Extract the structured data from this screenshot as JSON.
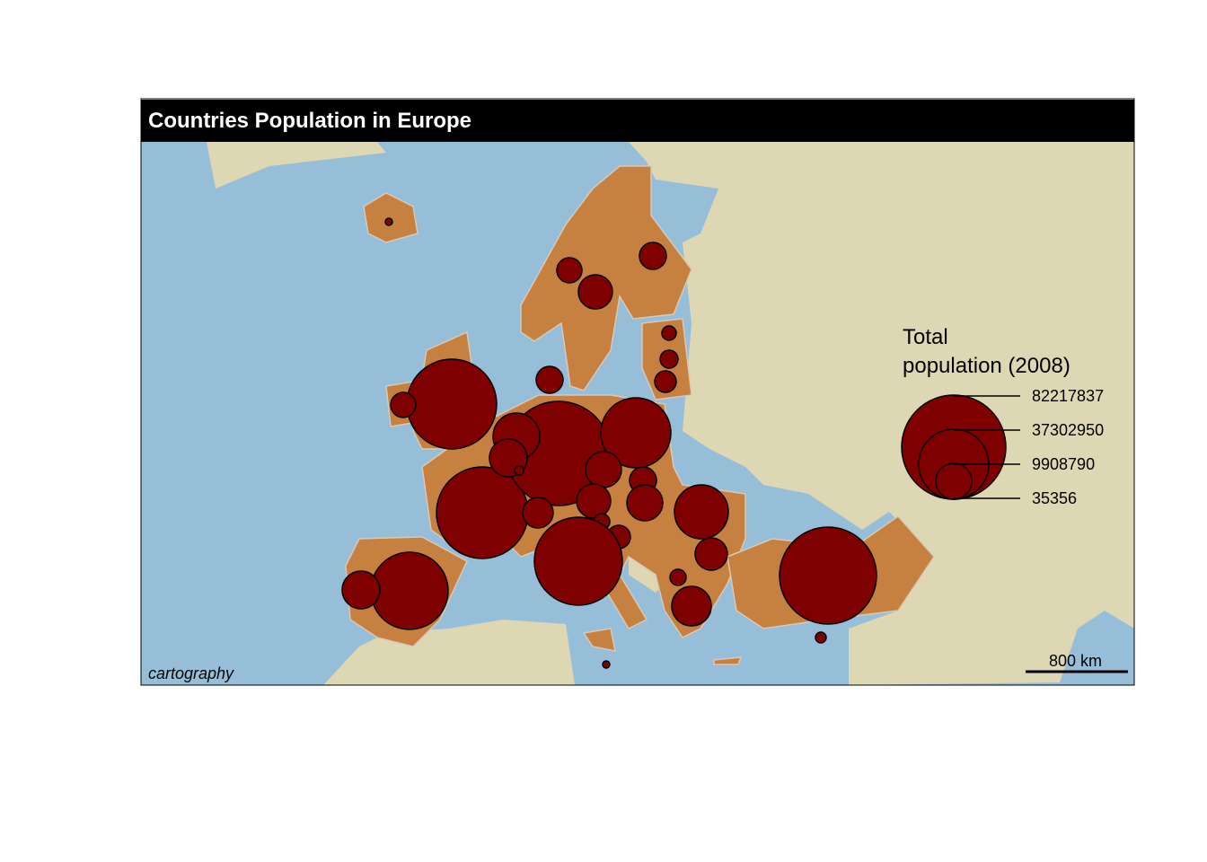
{
  "title": "Countries Population in Europe",
  "credit": "cartography",
  "scale_bar": {
    "label": "800 km"
  },
  "legend": {
    "title_line1": "Total",
    "title_line2": "population (2008)",
    "values": [
      "82217837",
      "37302950",
      "9908790",
      "35356"
    ]
  },
  "colors": {
    "sea": "#97bed8",
    "land": "#ddd7b3",
    "eu_land": "#c6803f",
    "circle": "#7f0000",
    "title_bar": "#000000"
  }
}
